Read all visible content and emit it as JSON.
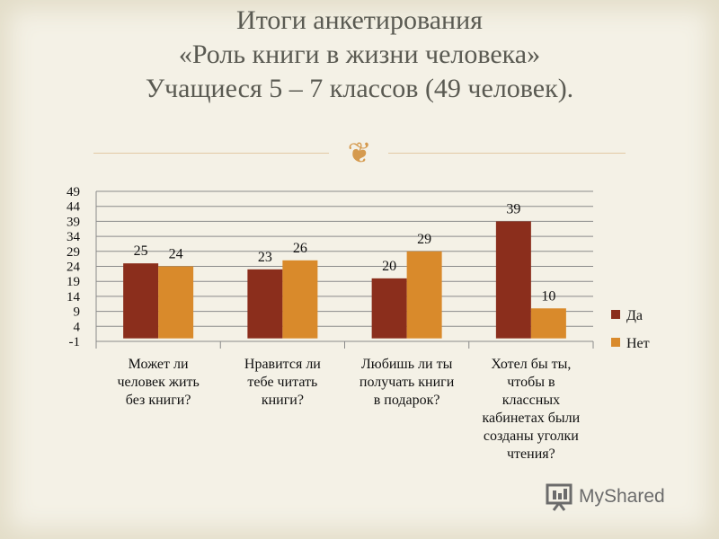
{
  "header": {
    "title_line1": "Итоги анкетирования",
    "title_line2": "«Роль книги в жизни человека»",
    "title_line3": "Учащиеся 5 – 7 классов (49 человек)."
  },
  "ornament": "❦",
  "watermark": {
    "text": "MyShared"
  },
  "colors": {
    "series_da": "#8b2e1c",
    "series_net": "#d98a2b",
    "grid": "#888888"
  },
  "chart_data": {
    "type": "bar",
    "categories": [
      [
        "Может ли",
        "человек жить",
        "без книги?"
      ],
      [
        "Нравится ли",
        "тебе читать",
        "книги?"
      ],
      [
        "Любишь ли ты",
        "получать книги",
        "в подарок?"
      ],
      [
        "Хотел бы ты,",
        "чтобы в",
        "классных",
        "кабинетах были",
        "созданы уголки",
        "чтения?"
      ]
    ],
    "series": [
      {
        "name": "Да",
        "values": [
          25,
          23,
          20,
          39
        ],
        "color": "#8b2e1c"
      },
      {
        "name": "Нет",
        "values": [
          24,
          26,
          29,
          10
        ],
        "color": "#d98a2b"
      }
    ],
    "yticks": [
      -1,
      4,
      9,
      14,
      19,
      24,
      29,
      34,
      39,
      44,
      49
    ],
    "ylim": [
      -1,
      49
    ],
    "grid": true,
    "legend": "right"
  }
}
